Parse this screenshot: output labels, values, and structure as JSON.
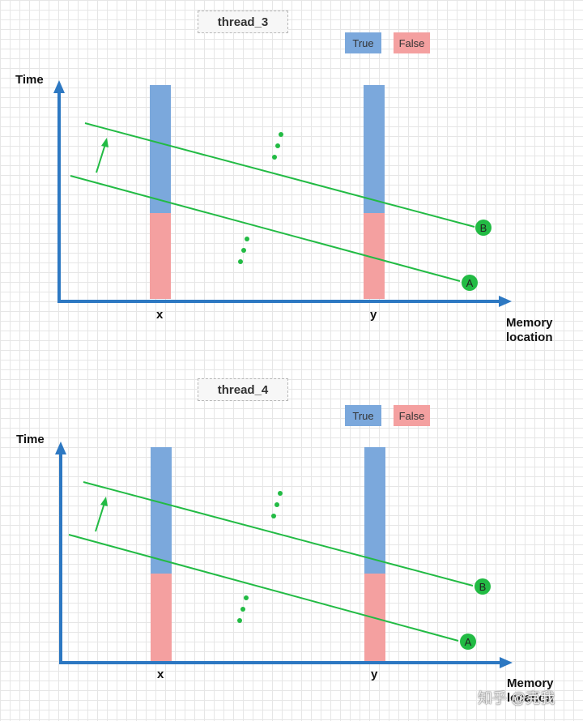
{
  "panels": [
    {
      "title": "thread_3",
      "legend": {
        "true_label": "True",
        "false_label": "False"
      },
      "y_axis_label": "Time",
      "x_axis_label": [
        "Memory",
        "location"
      ],
      "x_ticks": [
        "x",
        "y"
      ],
      "line_labels": {
        "a": "A",
        "b": "B"
      }
    },
    {
      "title": "thread_4",
      "legend": {
        "true_label": "True",
        "false_label": "False"
      },
      "y_axis_label": "Time",
      "x_axis_label": [
        "Memory",
        "location"
      ],
      "x_ticks": [
        "x",
        "y"
      ],
      "line_labels": {
        "a": "A",
        "b": "B"
      }
    }
  ],
  "colors": {
    "axis": "#2d78c2",
    "true_bar": "#7ba8dc",
    "false_bar": "#f4a0a0",
    "line": "#22bb44",
    "node": "#22bb44"
  },
  "watermark": "知乎 @克我"
}
